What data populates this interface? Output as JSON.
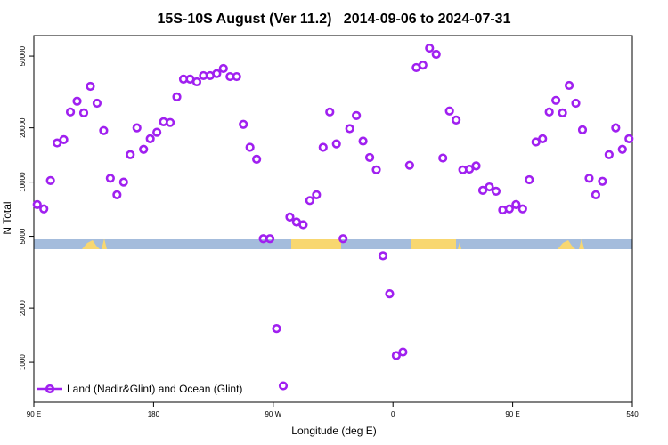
{
  "chart_data": {
    "type": "scatter",
    "title": "15S-10S August (Ver 11.2)   2014-09-06 to 2024-07-31",
    "x_label": "Longitude (deg E)",
    "y_label": "N Total",
    "log_y": true,
    "xlim": [
      90,
      540
    ],
    "ylim": [
      600,
      65000
    ],
    "xticks": [
      {
        "value": 90,
        "label": "90 E"
      },
      180,
      {
        "value": 270,
        "label": "90 W"
      },
      {
        "value": 360,
        "label": "0"
      },
      {
        "value": 450,
        "label": "90 E"
      },
      540
    ],
    "yticks": [
      1000,
      2000,
      5000,
      10000,
      20000,
      50000
    ],
    "legend": "bottom-left",
    "series": [
      {
        "name": "Land (Nadir&Glint) and Ocean (Glint)",
        "color": "#a020f0",
        "x": [
          92.5,
          97.5,
          102.5,
          107.5,
          112.5,
          117.5,
          122.5,
          127.5,
          132.5,
          137.5,
          142.5,
          147.5,
          152.5,
          157.5,
          162.5,
          167.5,
          172.5,
          177.5,
          182.5,
          187.5,
          192.5,
          197.5,
          202.5,
          207.5,
          212.5,
          217.5,
          222.5,
          227.5,
          232.5,
          237.5,
          242.5,
          247.5,
          252.5,
          257.5,
          262.5,
          267.5,
          272.5,
          277.5,
          282.5,
          287.5,
          292.5,
          297.5,
          302.5,
          307.5,
          312.5,
          317.5,
          322.5,
          327.5,
          332.5,
          337.5,
          342.5,
          347.5,
          352.5,
          357.5,
          362.5,
          367.5,
          372.5,
          377.5,
          382.5,
          387.5,
          392.5,
          397.5,
          402.5,
          407.5,
          412.5,
          417.5,
          422.5,
          427.5,
          432.5,
          437.5,
          442.5,
          447.5,
          452.5,
          457.5,
          462.5,
          467.5,
          472.5,
          477.5,
          482.5,
          487.5,
          492.5,
          497.5,
          502.5,
          507.5,
          512.5,
          517.5,
          522.5,
          527.5,
          532.5,
          537.5
        ],
        "values": [
          7500,
          7100,
          10200,
          16500,
          17200,
          24500,
          28100,
          24200,
          34000,
          27400,
          19300,
          10500,
          8500,
          10000,
          14200,
          20000,
          15200,
          17400,
          18900,
          21600,
          21400,
          29700,
          37300,
          37300,
          36000,
          39000,
          39000,
          40000,
          42700,
          38500,
          38500,
          20900,
          15600,
          13400,
          4850,
          4850,
          1540,
          740,
          6400,
          6000,
          5800,
          7900,
          8500,
          15600,
          24500,
          16300,
          4850,
          19800,
          23400,
          16900,
          13700,
          11700,
          3900,
          2400,
          1090,
          1140,
          12400,
          43200,
          44600,
          55400,
          51200,
          13600,
          24800,
          22100,
          11700,
          11800,
          12300,
          9000,
          9400,
          8900,
          7000,
          7100,
          7500,
          7100,
          10300,
          16700,
          17400,
          24500,
          28400,
          24200,
          34400,
          27400,
          19500,
          10500,
          8500,
          10100,
          14200,
          20000,
          15200,
          17400
        ]
      }
    ]
  }
}
